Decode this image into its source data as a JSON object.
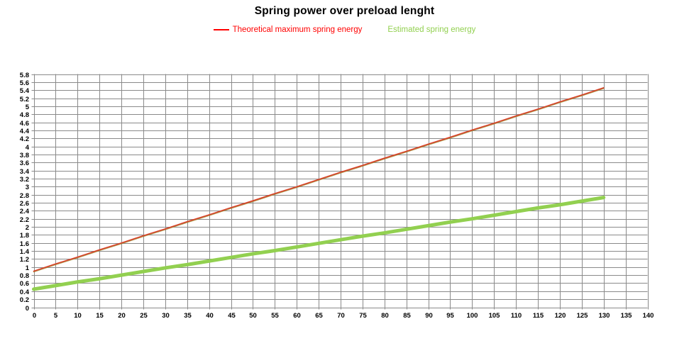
{
  "title": "Spring power over preload lenght",
  "legend": [
    {
      "label": "Theoretical maximum spring energy",
      "color": "#ff0000",
      "marker_visible": true
    },
    {
      "label": "Estimated spring energy",
      "color": "#92d050",
      "marker_visible": false
    }
  ],
  "chart_data": {
    "type": "line",
    "title": "Spring power over preload lenght",
    "xlabel": "",
    "ylabel": "",
    "xlim": [
      0,
      140
    ],
    "ylim": [
      0,
      5.8
    ],
    "grid": true,
    "gridline_color": "#8a8a8a",
    "legend_position": "top",
    "x_tick_values": [
      0,
      5,
      10,
      15,
      20,
      25,
      30,
      35,
      40,
      45,
      50,
      55,
      60,
      65,
      70,
      75,
      80,
      85,
      90,
      95,
      100,
      105,
      110,
      115,
      120,
      125,
      130,
      135,
      140
    ],
    "x_tick_labels": [
      "0",
      "5",
      "10",
      "15",
      "20",
      "25",
      "30",
      "35",
      "40",
      "45",
      "50",
      "55",
      "60",
      "65",
      "70",
      "75",
      "80",
      "85",
      "90",
      "95",
      "100",
      "105",
      "110",
      "115",
      "120",
      "125",
      "130",
      "135",
      "140"
    ],
    "y_tick_values": [
      0,
      0.2,
      0.4,
      0.6,
      0.8,
      1,
      1.2,
      1.4,
      1.6,
      1.8,
      2,
      2.2,
      2.4,
      2.6,
      2.8,
      3,
      3.2,
      3.4,
      3.6,
      3.8,
      4,
      4.2,
      4.4,
      4.6,
      4.8,
      5,
      5.2,
      5.4,
      5.6,
      5.8
    ],
    "y_tick_labels": [
      "0",
      "0.2",
      "0.4",
      "0.6",
      "0.8",
      "1",
      "1.2",
      "1.4",
      "1.6",
      "1.8",
      "2",
      "2.2",
      "2.4",
      "2.6",
      "2.8",
      "3",
      "3.2",
      "3.4",
      "3.6",
      "3.8",
      "4",
      "4.2",
      "4.4",
      "4.6",
      "4.8",
      "5",
      "5.2",
      "5.4",
      "5.6",
      "5.8"
    ],
    "x": [
      0,
      5,
      10,
      15,
      20,
      25,
      30,
      35,
      40,
      45,
      50,
      55,
      60,
      65,
      70,
      75,
      80,
      85,
      90,
      95,
      100,
      105,
      110,
      115,
      120,
      125,
      130
    ],
    "series": [
      {
        "name": "Theoretical maximum spring energy",
        "color": "#d8402a",
        "edge_color": "#a0852e",
        "width": 1.6,
        "values": [
          0.9,
          1.08,
          1.25,
          1.43,
          1.6,
          1.78,
          1.95,
          2.13,
          2.3,
          2.48,
          2.65,
          2.83,
          3.0,
          3.18,
          3.36,
          3.53,
          3.71,
          3.88,
          4.06,
          4.23,
          4.41,
          4.58,
          4.76,
          4.93,
          5.11,
          5.28,
          5.46
        ]
      },
      {
        "name": "Estimated spring energy",
        "color": "#92d050",
        "width": 5,
        "values": [
          0.45,
          0.54,
          0.63,
          0.71,
          0.8,
          0.89,
          0.98,
          1.06,
          1.15,
          1.24,
          1.33,
          1.41,
          1.5,
          1.59,
          1.68,
          1.77,
          1.85,
          1.94,
          2.03,
          2.12,
          2.2,
          2.29,
          2.38,
          2.47,
          2.55,
          2.64,
          2.73
        ]
      }
    ]
  }
}
